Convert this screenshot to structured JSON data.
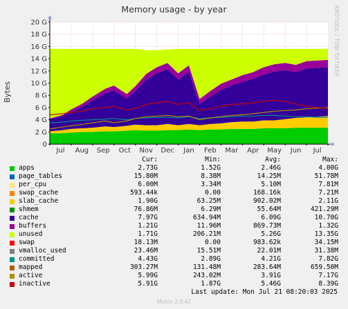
{
  "title": "Memory usage - by year",
  "side_label": "RRDTOOL / TOBI OETIKER",
  "footer": "Munin 2.0.42",
  "last_update": "Last update: Mon Jul 21 08:20:03 2025",
  "legend_headers": {
    "cur": "Cur:",
    "min": "Min:",
    "avg": "Avg:",
    "max": "Max:"
  },
  "legend": [
    {
      "name": "apps",
      "color": "#00cc00",
      "cur": "2.73G",
      "min": "1.52G",
      "avg": "2.46G",
      "max": "4.00G"
    },
    {
      "name": "page_tables",
      "color": "#0066b3",
      "cur": "15.80M",
      "min": "8.38M",
      "avg": "14.25M",
      "max": "51.78M"
    },
    {
      "name": "per_cpu",
      "color": "#ffe680",
      "cur": "6.00M",
      "min": "3.34M",
      "avg": "5.10M",
      "max": "7.81M"
    },
    {
      "name": "swap_cache",
      "color": "#ff8000",
      "cur": "593.44k",
      "min": "0.00",
      "avg": "168.16k",
      "max": "7.21M"
    },
    {
      "name": "slab_cache",
      "color": "#ffcc00",
      "cur": "1.90G",
      "min": "63.25M",
      "avg": "902.02M",
      "max": "2.11G"
    },
    {
      "name": "shmem",
      "color": "#008f00",
      "cur": "76.86M",
      "min": "6.29M",
      "avg": "55.64M",
      "max": "421.29M"
    },
    {
      "name": "cache",
      "color": "#330099",
      "cur": "7.97G",
      "min": "634.94M",
      "avg": "6.09G",
      "max": "10.70G"
    },
    {
      "name": "buffers",
      "color": "#990099",
      "cur": "1.21G",
      "min": "11.96M",
      "avg": "869.73M",
      "max": "1.32G"
    },
    {
      "name": "unused",
      "color": "#ccff00",
      "cur": "1.71G",
      "min": "206.21M",
      "avg": "5.26G",
      "max": "13.35G"
    },
    {
      "name": "swap",
      "color": "#ff0000",
      "cur": "18.13M",
      "min": "0.00",
      "avg": "983.62k",
      "max": "34.15M"
    },
    {
      "name": "vmalloc_used",
      "color": "#808080",
      "cur": "23.46M",
      "min": "15.51M",
      "avg": "22.01M",
      "max": "31.38M"
    },
    {
      "name": "committed",
      "color": "#008f8f",
      "cur": "4.43G",
      "min": "2.89G",
      "avg": "4.21G",
      "max": "7.82G"
    },
    {
      "name": "mapped",
      "color": "#b35a00",
      "cur": "303.27M",
      "min": "131.48M",
      "avg": "283.64M",
      "max": "659.50M"
    },
    {
      "name": "active",
      "color": "#b38f00",
      "cur": "5.99G",
      "min": "243.02M",
      "avg": "3.91G",
      "max": "7.17G"
    },
    {
      "name": "inactive",
      "color": "#cc0000",
      "cur": "5.91G",
      "min": "1.87G",
      "avg": "5.46G",
      "max": "8.39G"
    }
  ],
  "chart_data": {
    "type": "area",
    "title": "Memory usage - by year",
    "ylabel": "Bytes",
    "ylim": [
      0,
      20
    ],
    "y_unit": "G",
    "yticks": [
      0,
      2,
      4,
      6,
      8,
      10,
      12,
      14,
      16,
      18,
      20
    ],
    "ytick_labels": [
      "0",
      "2 G",
      "4 G",
      "6 G",
      "8 G",
      "10 G",
      "12 G",
      "14 G",
      "16 G",
      "18 G",
      "20 G"
    ],
    "xlim": [
      0,
      13
    ],
    "x_labels": [
      {
        "label": "Jul",
        "x": 0.5
      },
      {
        "label": "Aug",
        "x": 1.5
      },
      {
        "label": "Sep",
        "x": 2.5
      },
      {
        "label": "Oct",
        "x": 3.5
      },
      {
        "label": "Nov",
        "x": 4.5
      },
      {
        "label": "Dec",
        "x": 5.5
      },
      {
        "label": "Jan",
        "x": 6.5
      },
      {
        "label": "Feb",
        "x": 7.5
      },
      {
        "label": "Mar",
        "x": 8.5
      },
      {
        "label": "Apr",
        "x": 9.5
      },
      {
        "label": "May",
        "x": 10.5
      },
      {
        "label": "Jun",
        "x": 11.5
      },
      {
        "label": "Jul",
        "x": 12.5
      }
    ],
    "x": [
      0,
      0.6,
      1.0,
      1.5,
      2.0,
      2.6,
      3.0,
      3.6,
      4.0,
      4.5,
      5.0,
      5.5,
      6.0,
      6.5,
      7.0,
      7.5,
      8.0,
      8.5,
      9.0,
      9.5,
      10.0,
      10.5,
      11.0,
      11.5,
      12.0,
      12.5,
      13.0
    ],
    "stacked_series": [
      {
        "name": "apps",
        "color": "#00cc00",
        "values": [
          1.8,
          1.8,
          1.9,
          2.0,
          2.0,
          2.1,
          2.1,
          2.2,
          2.3,
          2.2,
          2.2,
          2.3,
          2.3,
          2.4,
          2.3,
          2.4,
          2.4,
          2.5,
          2.5,
          2.5,
          2.6,
          2.6,
          2.6,
          2.7,
          2.7,
          2.7,
          2.7
        ]
      },
      {
        "name": "slab_cache",
        "color": "#ffcc00",
        "values": [
          0.3,
          0.5,
          0.6,
          0.6,
          0.7,
          0.8,
          0.7,
          0.8,
          0.9,
          0.9,
          0.9,
          1.0,
          0.8,
          0.9,
          0.8,
          0.9,
          1.0,
          1.1,
          1.2,
          1.2,
          1.3,
          1.3,
          1.5,
          1.6,
          1.7,
          1.8,
          1.9
        ]
      },
      {
        "name": "cache",
        "color": "#330099",
        "values": [
          2.0,
          2.3,
          2.8,
          3.5,
          4.5,
          5.5,
          6.0,
          4.5,
          5.5,
          7.5,
          8.5,
          9.0,
          7.5,
          8.5,
          3.5,
          4.5,
          5.5,
          6.0,
          6.5,
          7.0,
          7.5,
          8.0,
          8.0,
          7.5,
          8.0,
          8.0,
          8.0
        ]
      },
      {
        "name": "buffers",
        "color": "#990099",
        "values": [
          0.1,
          0.2,
          0.4,
          0.5,
          0.6,
          0.7,
          0.8,
          0.7,
          0.8,
          0.9,
          1.0,
          1.0,
          1.0,
          1.1,
          0.8,
          0.9,
          1.0,
          1.0,
          1.1,
          1.1,
          1.2,
          1.2,
          1.2,
          1.2,
          1.2,
          1.2,
          1.2
        ]
      },
      {
        "name": "unused",
        "color": "#ccff00",
        "values": [
          11.4,
          10.8,
          9.9,
          9.0,
          7.8,
          6.5,
          6.0,
          7.4,
          6.1,
          3.9,
          2.8,
          2.2,
          4.0,
          2.7,
          8.2,
          6.9,
          5.7,
          5.0,
          4.3,
          3.8,
          3.0,
          2.5,
          2.3,
          2.6,
          2.0,
          1.9,
          1.8
        ]
      }
    ],
    "line_series": [
      {
        "name": "committed",
        "color": "#008f8f",
        "values": [
          3.5,
          3.6,
          3.8,
          3.9,
          4.0,
          4.1,
          4.2,
          4.0,
          4.2,
          4.3,
          4.4,
          4.4,
          4.3,
          4.5,
          4.2,
          4.3,
          4.4,
          4.5,
          4.6,
          4.6,
          4.7,
          4.7,
          4.6,
          4.5,
          4.5,
          4.4,
          4.4
        ]
      },
      {
        "name": "active",
        "color": "#b38f00",
        "values": [
          2.5,
          2.8,
          3.0,
          3.2,
          3.5,
          3.8,
          3.5,
          3.8,
          4.2,
          4.5,
          4.6,
          4.7,
          4.5,
          4.6,
          4.0,
          4.3,
          4.5,
          4.7,
          4.8,
          5.0,
          5.2,
          5.4,
          5.5,
          5.6,
          5.8,
          5.9,
          6.0
        ]
      },
      {
        "name": "inactive",
        "color": "#cc0000",
        "values": [
          4.8,
          5.0,
          5.2,
          5.4,
          5.8,
          6.0,
          6.2,
          5.6,
          5.9,
          6.5,
          6.8,
          7.0,
          6.5,
          6.8,
          5.5,
          5.8,
          6.2,
          6.5,
          6.6,
          6.8,
          7.0,
          7.2,
          7.0,
          6.6,
          6.2,
          6.0,
          5.9
        ]
      }
    ]
  }
}
